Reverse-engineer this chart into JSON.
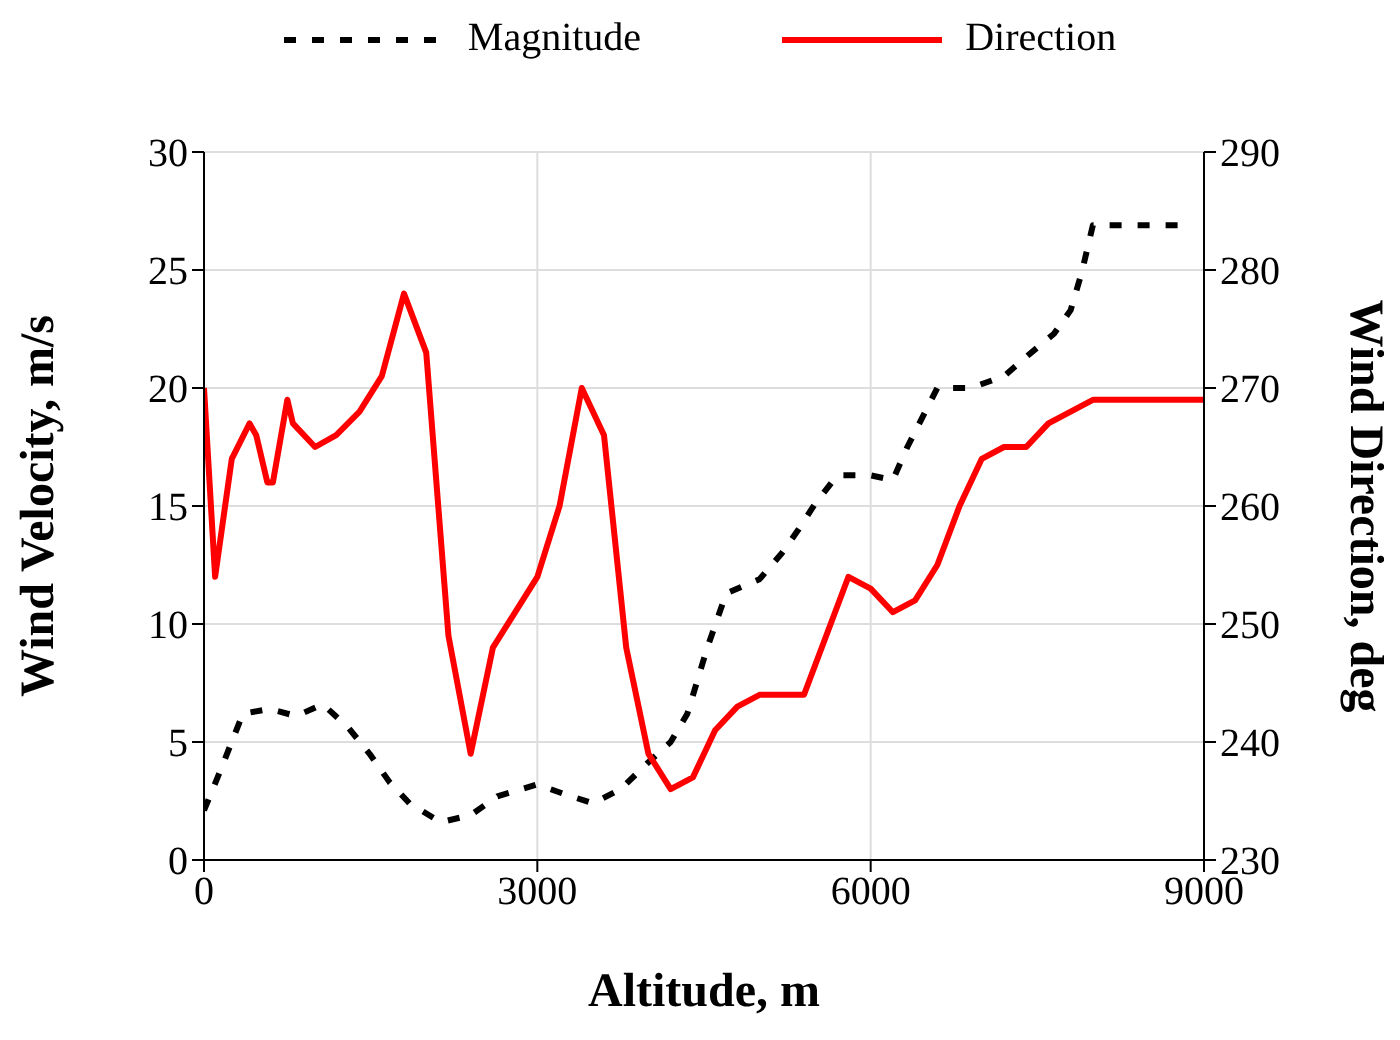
{
  "chart_data": {
    "type": "line",
    "xlabel": "Altitude, m",
    "ylabel": "Wind Velocity, m/s",
    "y2label": "Wind Direction, deg",
    "series": [
      {
        "name": "Magnitude",
        "color": "#000000",
        "line_style": "dashed",
        "x": [
          0,
          140,
          350,
          590,
          830,
          1070,
          1300,
          1490,
          1670,
          1850,
          2130,
          2400,
          2640,
          3000,
          3240,
          3500,
          3750,
          3990,
          4200,
          4350,
          4530,
          4700,
          5000,
          5200,
          5350,
          5500,
          5700,
          6000,
          6200,
          6330,
          6600,
          6900,
          7200,
          7420,
          7650,
          7800,
          7900,
          8000,
          8800
        ],
        "values": [
          2.1,
          3.7,
          6.2,
          6.4,
          6.1,
          6.6,
          5.6,
          4.5,
          3.3,
          2.4,
          1.6,
          1.9,
          2.7,
          3.2,
          2.8,
          2.4,
          3.0,
          4.1,
          5.0,
          6.2,
          9.0,
          11.3,
          11.9,
          13.0,
          14.0,
          15.1,
          16.3,
          16.3,
          16.1,
          17.5,
          20.0,
          20.0,
          20.5,
          21.4,
          22.3,
          23.3,
          24.9,
          26.9,
          26.9
        ]
      },
      {
        "name": "Direction",
        "color": "#ff0000",
        "line_style": "solid",
        "axis": "y2",
        "x": [
          0,
          100,
          250,
          410,
          470,
          570,
          620,
          750,
          800,
          1000,
          1190,
          1400,
          1600,
          1800,
          2000,
          2200,
          2400,
          2600,
          3000,
          3200,
          3400,
          3600,
          3800,
          4000,
          4200,
          4400,
          4600,
          4800,
          5000,
          5400,
          5800,
          6000,
          6200,
          6400,
          6600,
          6800,
          7000,
          7200,
          7400,
          7600,
          8000,
          9000
        ],
        "values": [
          270,
          254,
          264,
          267,
          266,
          262,
          262,
          269,
          267,
          265,
          266,
          268,
          271,
          278,
          273,
          249,
          239,
          248,
          254,
          260,
          270,
          266,
          248,
          239,
          236,
          237,
          241,
          243,
          244,
          244,
          254,
          253,
          251,
          252,
          255,
          260,
          264,
          265,
          265,
          267,
          269,
          269
        ]
      }
    ],
    "xlim": [
      0,
      9000
    ],
    "xticks": [
      0,
      3000,
      6000,
      9000
    ],
    "ylim": [
      0,
      30
    ],
    "yticks": [
      0,
      5,
      10,
      15,
      20,
      25,
      30
    ],
    "y2lim": [
      230,
      290
    ],
    "y2ticks": [
      230,
      240,
      250,
      260,
      270,
      280,
      290
    ],
    "grid": true,
    "legend": "top",
    "marker": "none"
  }
}
